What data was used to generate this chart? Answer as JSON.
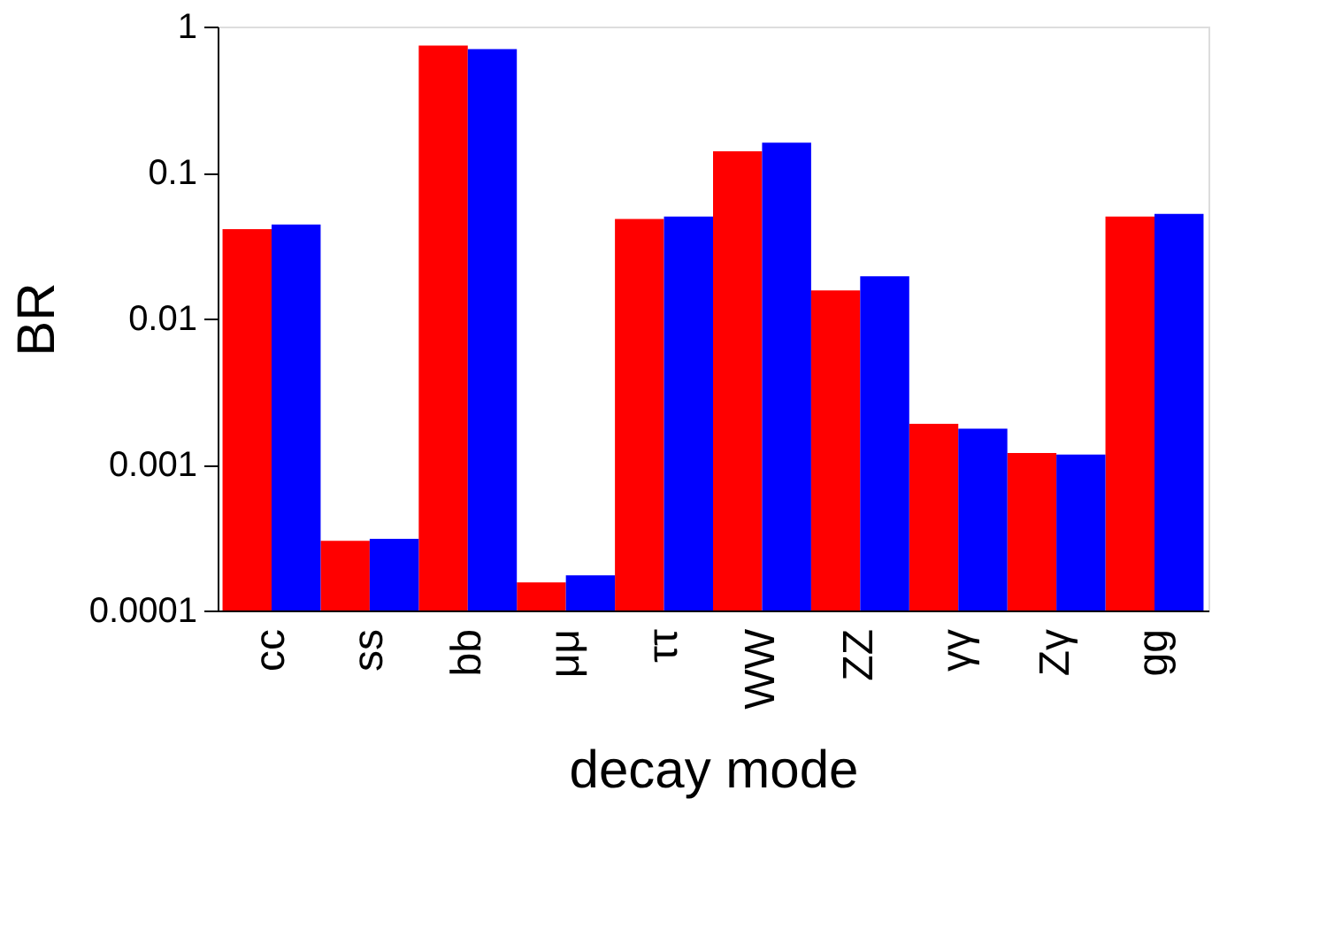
{
  "chart_data": {
    "type": "bar",
    "xlabel": "decay mode",
    "ylabel": "BR",
    "categories": [
      "cc",
      "ss",
      "bb",
      "μμ",
      "ττ",
      "WW",
      "ZZ",
      "γγ",
      "Zγ",
      "gg"
    ],
    "series": [
      {
        "color": "#ff0000",
        "values": [
          0.041,
          0.0003,
          0.74,
          0.000156,
          0.048,
          0.14,
          0.0156,
          0.0019,
          0.0012,
          0.05
        ]
      },
      {
        "color": "#0000ff",
        "values": [
          0.044,
          0.00031,
          0.7,
          0.000174,
          0.05,
          0.16,
          0.0195,
          0.00176,
          0.00117,
          0.052
        ]
      }
    ],
    "log": true,
    "ylim": [
      0.0001,
      1
    ],
    "yticks": [
      0.0001,
      0.001,
      0.01,
      0.1,
      1
    ],
    "grid": false,
    "legend": false
  }
}
